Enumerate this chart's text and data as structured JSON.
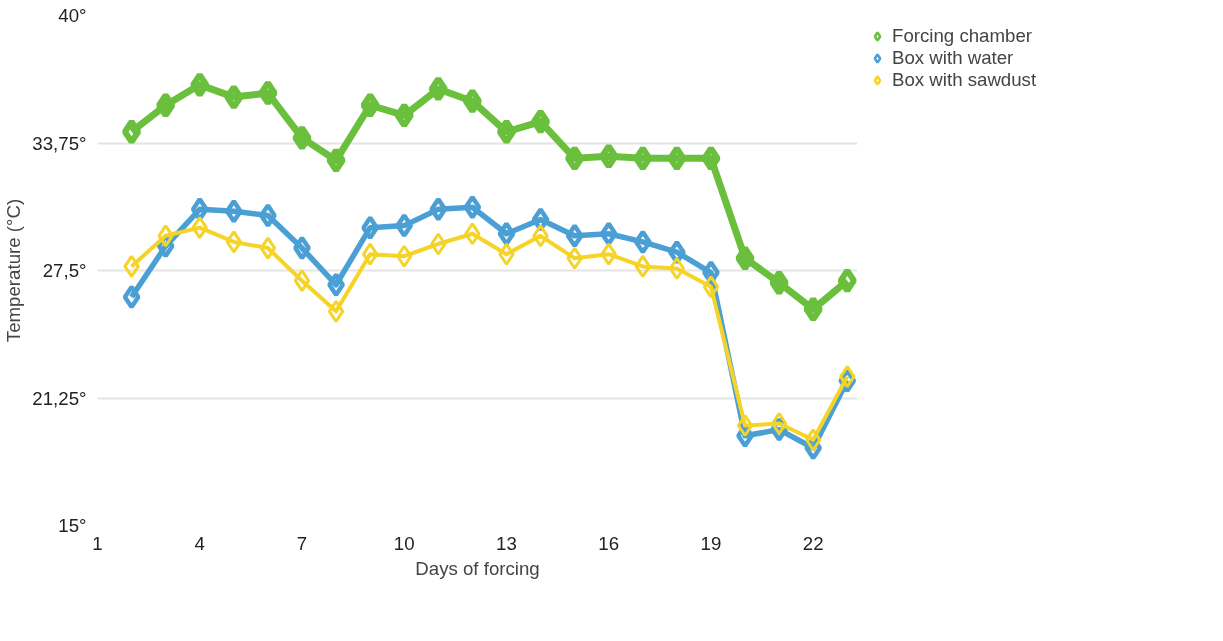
{
  "chart_data": {
    "type": "line",
    "xlabel": "Days of forcing",
    "ylabel": "Temperature (°C)",
    "x": [
      2,
      3,
      4,
      5,
      6,
      7,
      8,
      9,
      10,
      11,
      12,
      13,
      14,
      15,
      16,
      17,
      18,
      19,
      20,
      21,
      22,
      23
    ],
    "series": [
      {
        "name": "Forcing chamber",
        "color": "#6abf3c",
        "values": [
          34.3,
          35.6,
          36.6,
          36.0,
          36.2,
          34.0,
          32.9,
          35.6,
          35.1,
          36.4,
          35.8,
          34.3,
          34.8,
          33.0,
          33.1,
          33.0,
          33.0,
          33.0,
          28.1,
          26.9,
          25.6,
          27.0
        ]
      },
      {
        "name": "Box with water",
        "color": "#4a9fd4",
        "values": [
          26.2,
          28.7,
          30.5,
          30.4,
          30.2,
          28.6,
          26.8,
          29.6,
          29.7,
          30.5,
          30.6,
          29.3,
          30.0,
          29.2,
          29.3,
          28.9,
          28.4,
          27.4,
          19.4,
          19.7,
          18.8,
          22.1
        ]
      },
      {
        "name": "Box with sawdust",
        "color": "#f5d327",
        "values": [
          27.7,
          29.2,
          29.6,
          28.9,
          28.6,
          27.0,
          25.5,
          28.3,
          28.2,
          28.8,
          29.3,
          28.3,
          29.2,
          28.1,
          28.3,
          27.7,
          27.6,
          26.7,
          19.9,
          20.0,
          19.2,
          22.3
        ]
      }
    ],
    "xlim": [
      1,
      23.3
    ],
    "xticks": [
      1,
      4,
      7,
      10,
      13,
      16,
      19,
      22
    ],
    "ylim": [
      15,
      40
    ],
    "yticks": [
      {
        "value": 15,
        "label": "15°"
      },
      {
        "value": 21.25,
        "label": "21,25°"
      },
      {
        "value": 27.5,
        "label": "27,5°"
      },
      {
        "value": 33.75,
        "label": "33,75°"
      },
      {
        "value": 40,
        "label": "40°"
      }
    ],
    "grid": "y",
    "legend": "top right",
    "marker": "diamond",
    "line_style": "solid"
  }
}
